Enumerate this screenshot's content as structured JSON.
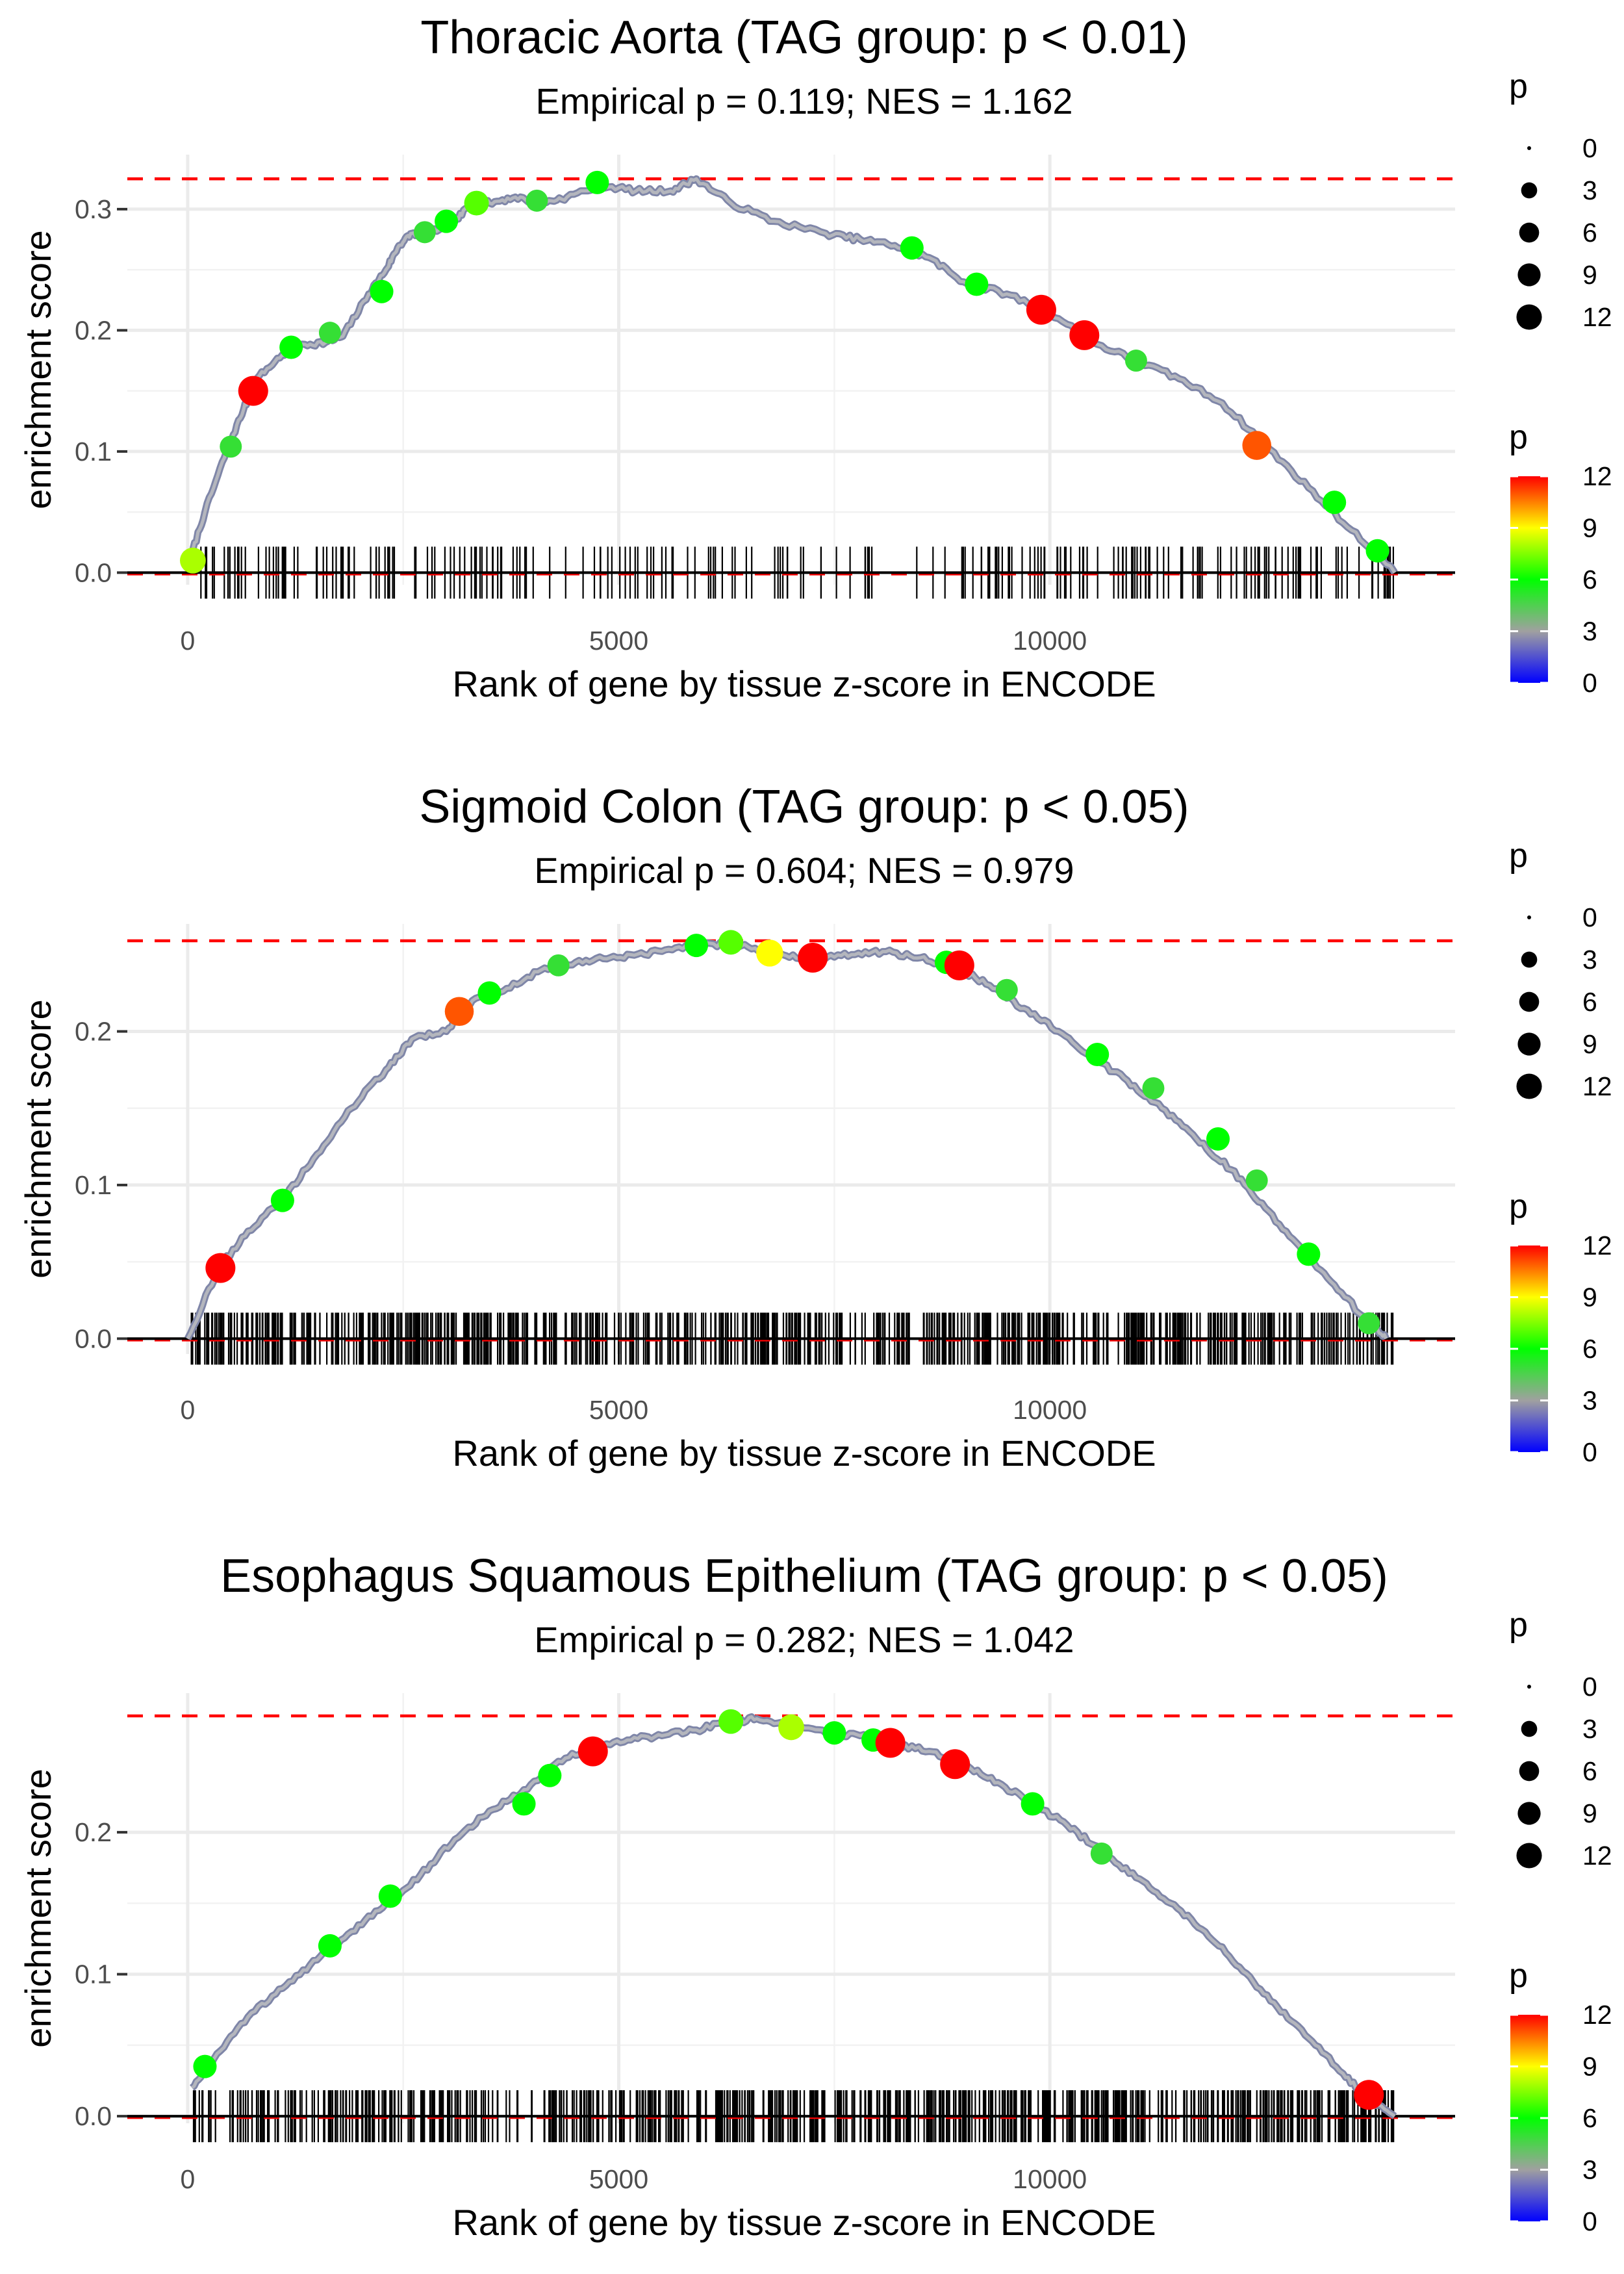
{
  "chart_data": [
    {
      "type": "line",
      "title": "Thoracic Aorta (TAG group: p < 0.01)",
      "subtitle": "Empirical p = 0.119; NES = 1.162",
      "xlabel": "Rank of gene by tissue z-score in ENCODE",
      "ylabel": "enrichment score",
      "xlim": [
        -700,
        14700
      ],
      "ylim": [
        -0.01,
        0.345
      ],
      "xticks": [
        0,
        5000,
        10000
      ],
      "xtick_labels": [
        "0",
        "5000",
        "10000"
      ],
      "yticks": [
        0.0,
        0.1,
        0.2,
        0.3
      ],
      "ytick_labels": [
        "0.0",
        "0.1",
        "0.2",
        "0.3"
      ],
      "max_es": 0.325,
      "hit_range": [
        30,
        14000
      ],
      "hit_count": 240,
      "x": [
        0,
        200,
        450,
        650,
        800,
        1100,
        1300,
        1600,
        1800,
        2100,
        2300,
        2450,
        2600,
        2800,
        3100,
        3300,
        3500,
        3800,
        4100,
        4400,
        4800,
        5200,
        5600,
        5900,
        6300,
        6800,
        7400,
        7800,
        8200,
        8600,
        9000,
        9500,
        10000,
        10500,
        11000,
        11500,
        12000,
        12500,
        13000,
        13500,
        14000
      ],
      "y": [
        0.005,
        0.05,
        0.1,
        0.135,
        0.16,
        0.18,
        0.188,
        0.19,
        0.195,
        0.23,
        0.25,
        0.27,
        0.28,
        0.28,
        0.29,
        0.305,
        0.305,
        0.31,
        0.305,
        0.31,
        0.32,
        0.315,
        0.315,
        0.325,
        0.305,
        0.29,
        0.28,
        0.275,
        0.27,
        0.26,
        0.24,
        0.23,
        0.215,
        0.19,
        0.175,
        0.16,
        0.14,
        0.105,
        0.07,
        0.035,
        0.0
      ],
      "points": [
        {
          "x": 60,
          "y": 0.01,
          "p": 8
        },
        {
          "x": 760,
          "y": 0.15,
          "p": 12
        },
        {
          "x": 500,
          "y": 0.104,
          "p": 5
        },
        {
          "x": 1200,
          "y": 0.186,
          "p": 6
        },
        {
          "x": 1650,
          "y": 0.198,
          "p": 5
        },
        {
          "x": 2250,
          "y": 0.232,
          "p": 6
        },
        {
          "x": 2750,
          "y": 0.281,
          "p": 5
        },
        {
          "x": 3000,
          "y": 0.29,
          "p": 6
        },
        {
          "x": 3350,
          "y": 0.305,
          "p": 7
        },
        {
          "x": 4050,
          "y": 0.307,
          "p": 5
        },
        {
          "x": 4750,
          "y": 0.322,
          "p": 6
        },
        {
          "x": 8400,
          "y": 0.268,
          "p": 6
        },
        {
          "x": 9150,
          "y": 0.238,
          "p": 6
        },
        {
          "x": 9900,
          "y": 0.217,
          "p": 12
        },
        {
          "x": 10400,
          "y": 0.196,
          "p": 12
        },
        {
          "x": 11000,
          "y": 0.175,
          "p": 5
        },
        {
          "x": 12400,
          "y": 0.105,
          "p": 11
        },
        {
          "x": 13300,
          "y": 0.058,
          "p": 6
        },
        {
          "x": 13800,
          "y": 0.018,
          "p": 6
        }
      ],
      "legend_size": {
        "title": "p",
        "breaks": [
          0,
          3,
          6,
          9,
          12
        ],
        "labels": [
          "0",
          "3",
          "6",
          "9",
          "12"
        ]
      },
      "legend_color": {
        "title": "p",
        "breaks": [
          0,
          3,
          6,
          9,
          12
        ],
        "labels": [
          "0",
          "3",
          "6",
          "9",
          "12"
        ],
        "colors": [
          "#0000ff",
          "#a0a0a0",
          "#00ff00",
          "#ffff00",
          "#ff0000"
        ]
      }
    },
    {
      "type": "line",
      "title": "Sigmoid Colon (TAG group: p < 0.05)",
      "subtitle": "Empirical p = 0.604; NES = 0.979",
      "xlabel": "Rank of gene by tissue z-score in ENCODE",
      "ylabel": "enrichment score",
      "xlim": [
        -700,
        14700
      ],
      "ylim": [
        -0.01,
        0.27
      ],
      "xticks": [
        0,
        5000,
        10000
      ],
      "xtick_labels": [
        "0",
        "5000",
        "10000"
      ],
      "yticks": [
        0.0,
        0.1,
        0.2
      ],
      "ytick_labels": [
        "0.0",
        "0.1",
        "0.2"
      ],
      "max_es": 0.259,
      "hit_range": [
        30,
        14000
      ],
      "hit_count": 700,
      "x": [
        0,
        350,
        700,
        1100,
        1500,
        1900,
        2300,
        2600,
        3000,
        3300,
        3700,
        4100,
        4500,
        4900,
        5300,
        5700,
        6100,
        6500,
        6900,
        7300,
        7700,
        8100,
        8500,
        8900,
        9300,
        9700,
        10100,
        10500,
        10900,
        11300,
        11700,
        12100,
        12500,
        12900,
        13300,
        13700,
        13900
      ],
      "y": [
        0.0,
        0.045,
        0.07,
        0.09,
        0.12,
        0.15,
        0.175,
        0.195,
        0.2,
        0.22,
        0.228,
        0.24,
        0.245,
        0.248,
        0.25,
        0.255,
        0.257,
        0.255,
        0.25,
        0.248,
        0.25,
        0.252,
        0.248,
        0.242,
        0.23,
        0.215,
        0.2,
        0.183,
        0.168,
        0.15,
        0.13,
        0.11,
        0.085,
        0.06,
        0.035,
        0.01,
        0.0
      ],
      "points": [
        {
          "x": 380,
          "y": 0.046,
          "p": 12
        },
        {
          "x": 1100,
          "y": 0.09,
          "p": 6
        },
        {
          "x": 3150,
          "y": 0.213,
          "p": 11
        },
        {
          "x": 3500,
          "y": 0.225,
          "p": 6
        },
        {
          "x": 4300,
          "y": 0.243,
          "p": 5
        },
        {
          "x": 5900,
          "y": 0.256,
          "p": 6
        },
        {
          "x": 6300,
          "y": 0.258,
          "p": 7
        },
        {
          "x": 6750,
          "y": 0.251,
          "p": 9
        },
        {
          "x": 7250,
          "y": 0.248,
          "p": 12
        },
        {
          "x": 8800,
          "y": 0.245,
          "p": 6
        },
        {
          "x": 8950,
          "y": 0.243,
          "p": 12
        },
        {
          "x": 9500,
          "y": 0.227,
          "p": 5
        },
        {
          "x": 10550,
          "y": 0.185,
          "p": 6
        },
        {
          "x": 11200,
          "y": 0.163,
          "p": 5
        },
        {
          "x": 11950,
          "y": 0.13,
          "p": 6
        },
        {
          "x": 12400,
          "y": 0.103,
          "p": 5
        },
        {
          "x": 13000,
          "y": 0.055,
          "p": 6
        },
        {
          "x": 13700,
          "y": 0.01,
          "p": 5
        }
      ],
      "legend_size": {
        "title": "p",
        "breaks": [
          0,
          3,
          6,
          9,
          12
        ],
        "labels": [
          "0",
          "3",
          "6",
          "9",
          "12"
        ]
      },
      "legend_color": {
        "title": "p",
        "breaks": [
          0,
          3,
          6,
          9,
          12
        ],
        "labels": [
          "0",
          "3",
          "6",
          "9",
          "12"
        ],
        "colors": [
          "#0000ff",
          "#a0a0a0",
          "#00ff00",
          "#ffff00",
          "#ff0000"
        ]
      }
    },
    {
      "type": "line",
      "title": "Esophagus Squamous Epithelium (TAG group: p < 0.05)",
      "subtitle": "Empirical p = 0.282; NES = 1.042",
      "xlabel": "Rank of gene by tissue z-score in ENCODE",
      "ylabel": "enrichment score",
      "xlim": [
        -700,
        14700
      ],
      "ylim": [
        -0.005,
        0.298
      ],
      "xticks": [
        0,
        5000,
        10000
      ],
      "xtick_labels": [
        "0",
        "5000",
        "10000"
      ],
      "yticks": [
        0.0,
        0.1,
        0.2
      ],
      "ytick_labels": [
        "0.0",
        "0.1",
        "0.2"
      ],
      "max_es": 0.282,
      "hit_range": [
        50,
        14000
      ],
      "hit_count": 700,
      "x": [
        50,
        300,
        700,
        1100,
        1500,
        1900,
        2300,
        2700,
        3100,
        3500,
        3900,
        4300,
        4700,
        5100,
        5500,
        5900,
        6300,
        6600,
        7000,
        7400,
        7800,
        8200,
        8600,
        9000,
        9400,
        9800,
        10200,
        10600,
        11000,
        11400,
        11800,
        12200,
        12600,
        13000,
        13400,
        13700,
        14000
      ],
      "y": [
        0.02,
        0.04,
        0.07,
        0.09,
        0.11,
        0.13,
        0.15,
        0.17,
        0.195,
        0.215,
        0.23,
        0.25,
        0.26,
        0.265,
        0.268,
        0.272,
        0.278,
        0.28,
        0.275,
        0.27,
        0.268,
        0.262,
        0.257,
        0.247,
        0.235,
        0.22,
        0.205,
        0.187,
        0.168,
        0.15,
        0.13,
        0.105,
        0.08,
        0.055,
        0.03,
        0.012,
        0.0
      ],
      "points": [
        {
          "x": 200,
          "y": 0.035,
          "p": 6
        },
        {
          "x": 1650,
          "y": 0.12,
          "p": 6
        },
        {
          "x": 2350,
          "y": 0.155,
          "p": 6
        },
        {
          "x": 3900,
          "y": 0.22,
          "p": 6
        },
        {
          "x": 4200,
          "y": 0.24,
          "p": 6
        },
        {
          "x": 4700,
          "y": 0.257,
          "p": 12
        },
        {
          "x": 6300,
          "y": 0.278,
          "p": 7
        },
        {
          "x": 7000,
          "y": 0.274,
          "p": 8
        },
        {
          "x": 7500,
          "y": 0.27,
          "p": 6
        },
        {
          "x": 7950,
          "y": 0.265,
          "p": 6
        },
        {
          "x": 8150,
          "y": 0.263,
          "p": 12
        },
        {
          "x": 8900,
          "y": 0.248,
          "p": 12
        },
        {
          "x": 9800,
          "y": 0.22,
          "p": 6
        },
        {
          "x": 10600,
          "y": 0.185,
          "p": 5
        },
        {
          "x": 13700,
          "y": 0.015,
          "p": 12
        }
      ],
      "legend_size": {
        "title": "p",
        "breaks": [
          0,
          3,
          6,
          9,
          12
        ],
        "labels": [
          "0",
          "3",
          "6",
          "9",
          "12"
        ]
      },
      "legend_color": {
        "title": "p",
        "breaks": [
          0,
          3,
          6,
          9,
          12
        ],
        "labels": [
          "0",
          "3",
          "6",
          "9",
          "12"
        ],
        "colors": [
          "#0000ff",
          "#a0a0a0",
          "#00ff00",
          "#ffff00",
          "#ff0000"
        ]
      }
    }
  ]
}
